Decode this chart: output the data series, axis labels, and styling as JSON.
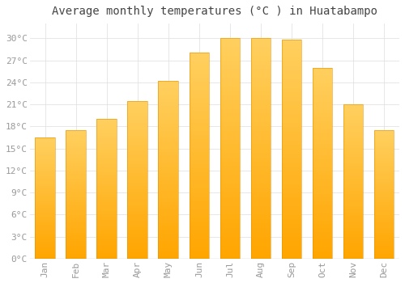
{
  "title": "Average monthly temperatures (°C ) in Huatabampo",
  "months": [
    "Jan",
    "Feb",
    "Mar",
    "Apr",
    "May",
    "Jun",
    "Jul",
    "Aug",
    "Sep",
    "Oct",
    "Nov",
    "Dec"
  ],
  "values": [
    16.5,
    17.5,
    19.0,
    21.5,
    24.2,
    28.0,
    30.0,
    30.0,
    29.8,
    26.0,
    21.0,
    17.5
  ],
  "bar_color_bottom": "#FFA500",
  "bar_color_top": "#FFD060",
  "bar_edge_color": "#E89000",
  "background_color": "#FFFFFF",
  "grid_color": "#DDDDDD",
  "ytick_labels": [
    "0°C",
    "3°C",
    "6°C",
    "9°C",
    "12°C",
    "15°C",
    "18°C",
    "21°C",
    "24°C",
    "27°C",
    "30°C"
  ],
  "ytick_values": [
    0,
    3,
    6,
    9,
    12,
    15,
    18,
    21,
    24,
    27,
    30
  ],
  "ylim": [
    0,
    32
  ],
  "title_fontsize": 10,
  "tick_fontsize": 8,
  "tick_font_color": "#999999",
  "title_color": "#444444"
}
